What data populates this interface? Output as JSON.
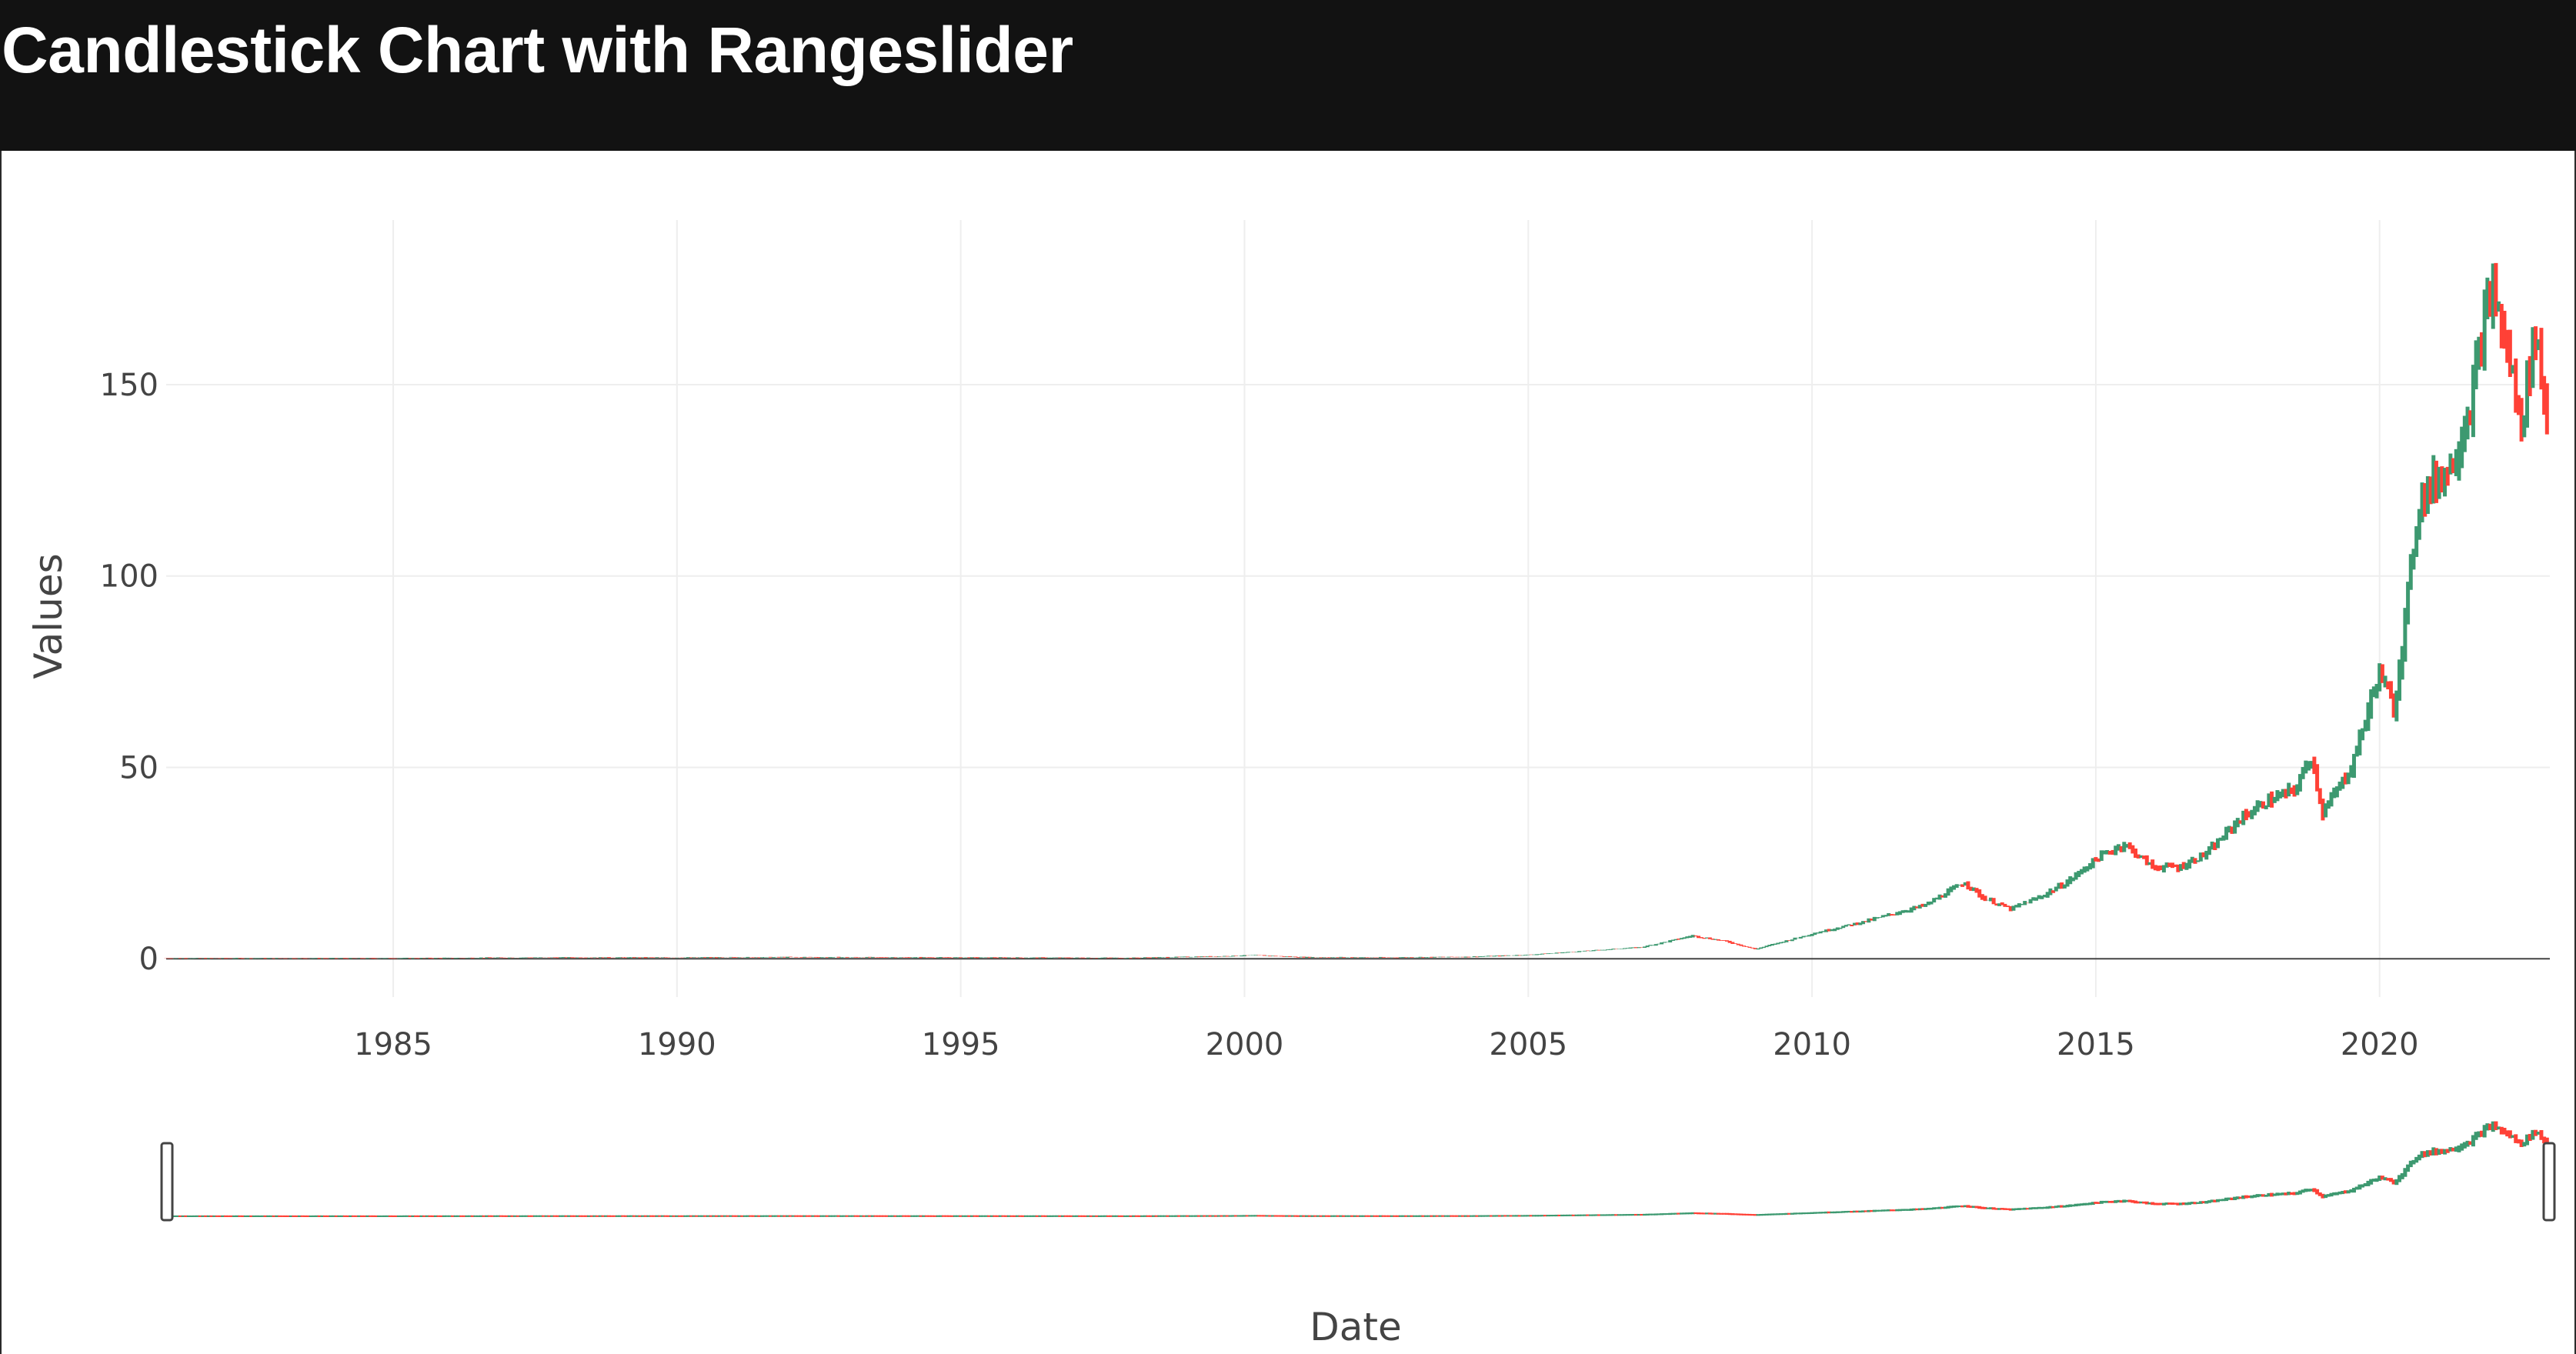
{
  "header": {
    "title": "Candlestick Chart with Rangeslider"
  },
  "colors": {
    "header_bg": "#121212",
    "increasing": "#3d9970",
    "decreasing": "#ff4136",
    "grid": "#eeeeee",
    "zeroline": "#444444"
  },
  "chart_data": {
    "type": "candlestick",
    "title": "Candlestick Chart with Rangeslider",
    "xlabel": "Date",
    "ylabel": "Values",
    "xlim": [
      1981,
      2023
    ],
    "ylim": [
      -10,
      193
    ],
    "x_ticks": [
      1985,
      1990,
      1995,
      2000,
      2005,
      2010,
      2015,
      2020
    ],
    "y_ticks": [
      0,
      50,
      100,
      150
    ],
    "grid": true,
    "rangeslider": true,
    "series": [
      {
        "name": "increasing",
        "color": "#3d9970"
      },
      {
        "name": "decreasing",
        "color": "#ff4136"
      }
    ],
    "price_path": {
      "x": [
        1981.0,
        1983.0,
        1985.0,
        1987.5,
        1990.0,
        1992.0,
        1995.0,
        1998.0,
        1999.5,
        2000.2,
        2001.0,
        2002.5,
        2004.0,
        2005.0,
        2006.0,
        2007.0,
        2007.9,
        2008.5,
        2009.0,
        2010.0,
        2011.0,
        2012.0,
        2012.7,
        2013.0,
        2013.5,
        2014.0,
        2014.5,
        2015.0,
        2015.5,
        2016.0,
        2016.5,
        2017.0,
        2017.5,
        2018.0,
        2018.5,
        2018.8,
        2019.0,
        2019.5,
        2020.0,
        2020.25,
        2020.5,
        2020.7,
        2021.0,
        2021.3,
        2021.6,
        2021.9,
        2022.0,
        2022.3,
        2022.5,
        2022.75,
        2022.95
      ],
      "y": [
        0.1,
        0.1,
        0.1,
        0.3,
        0.3,
        0.4,
        0.3,
        0.2,
        0.6,
        0.9,
        0.4,
        0.3,
        0.5,
        1.0,
        2.0,
        3.0,
        6.0,
        4.5,
        2.5,
        6.5,
        10.0,
        14.0,
        20.0,
        16.0,
        13.0,
        16.0,
        20.0,
        26.0,
        30.0,
        24.0,
        24.0,
        28.0,
        36.0,
        41.0,
        44.0,
        53.0,
        38.0,
        50.0,
        75.0,
        65.0,
        95.0,
        120.0,
        125.0,
        130.0,
        145.0,
        170.0,
        175.0,
        155.0,
        140.0,
        165.0,
        140.0
      ]
    },
    "range_selection": [
      1981,
      2023
    ]
  }
}
